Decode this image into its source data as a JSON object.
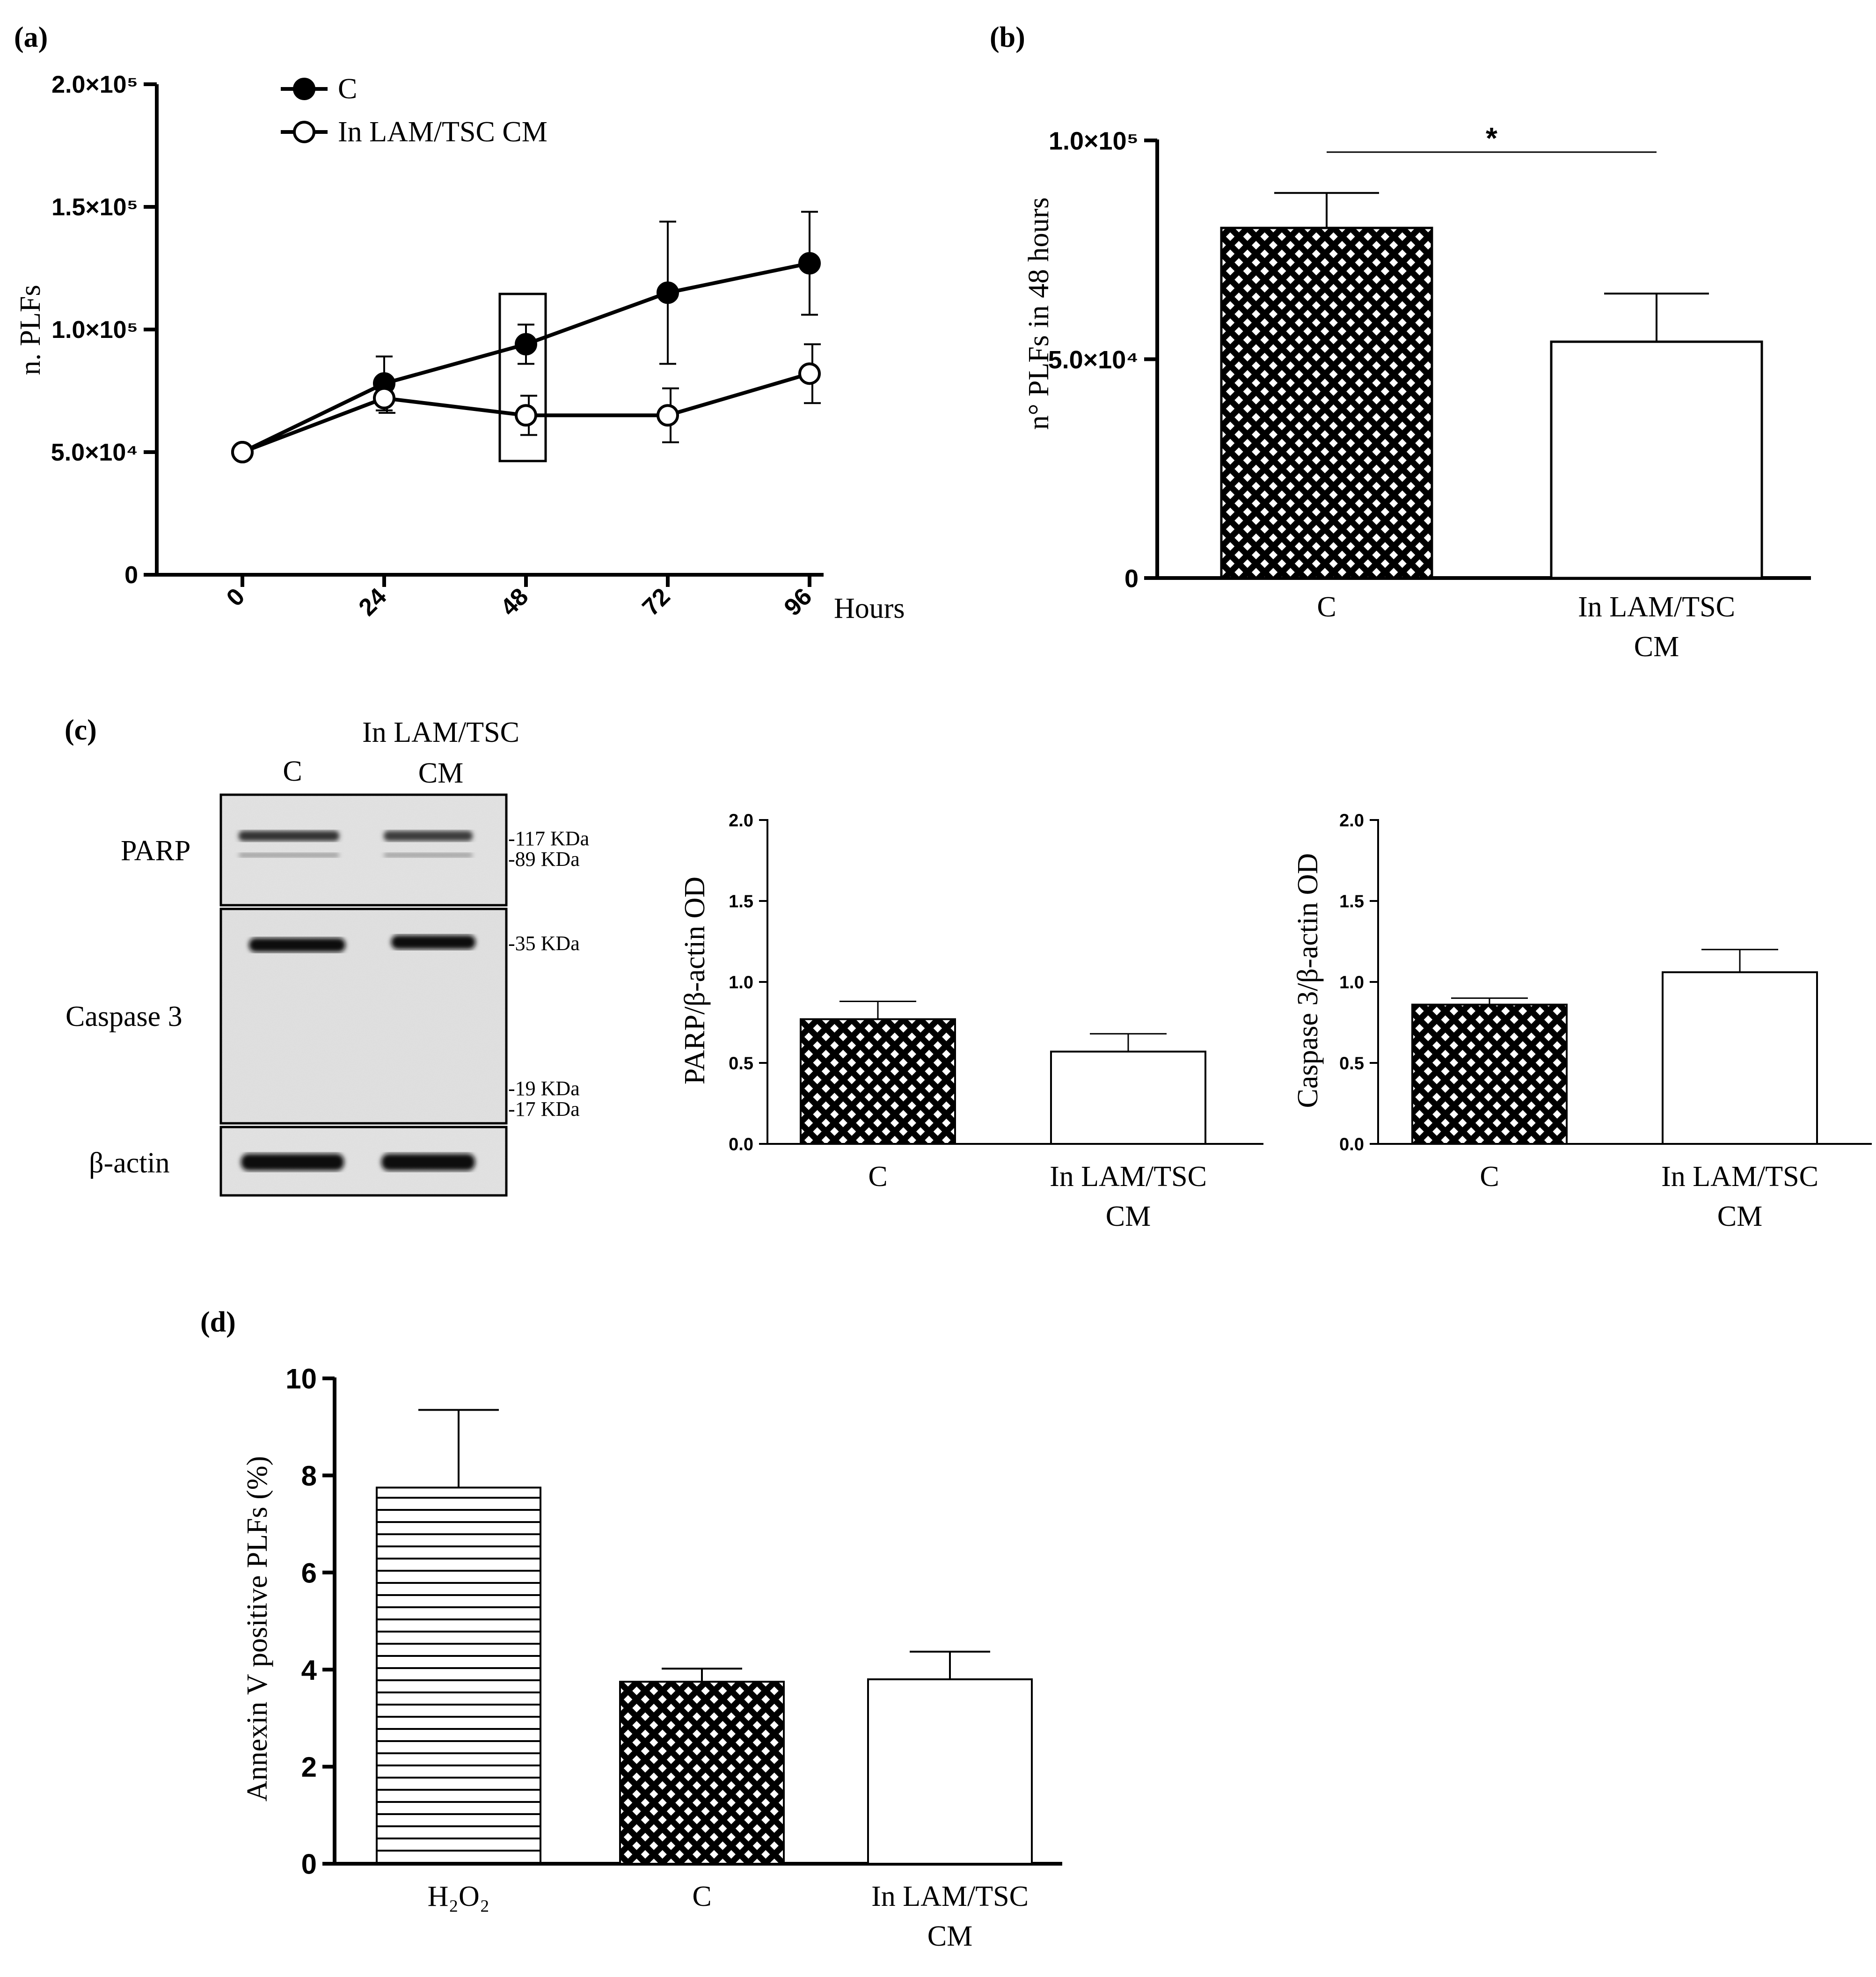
{
  "panel_labels": {
    "a": "(a)",
    "b": "(b)",
    "c": "(c)",
    "d": "(d)"
  },
  "colors": {
    "ink": "#000000",
    "background": "#ffffff",
    "blot_band": "#141414",
    "blot_bg": "#e2e2e2"
  },
  "chart_data": [
    {
      "id": "a",
      "type": "line",
      "title": "",
      "xlabel": "Hours",
      "ylabel": "n. PLFs",
      "x": [
        0,
        24,
        48,
        72,
        96
      ],
      "xtick_labels": [
        "0",
        "24",
        "48",
        "72",
        "96"
      ],
      "ylim": [
        0,
        200000
      ],
      "yticks": [
        0,
        50000,
        100000,
        150000,
        200000
      ],
      "ytick_labels": [
        "0",
        "5.0×10⁴",
        "1.0×10⁵",
        "1.5×10⁵",
        "2.0×10⁵"
      ],
      "series": [
        {
          "name": "C",
          "marker": "filled",
          "values": [
            50000,
            78000,
            94000,
            115000,
            127000
          ],
          "errors": [
            0,
            11000,
            8000,
            29000,
            21000
          ]
        },
        {
          "name": "In LAM/TSC CM",
          "marker": "open",
          "values": [
            50000,
            72000,
            65000,
            65000,
            82000
          ],
          "errors": [
            0,
            6000,
            8000,
            11000,
            12000
          ]
        }
      ],
      "highlight_box_at_x": 48
    },
    {
      "id": "b",
      "type": "bar",
      "ylabel": "n° PLFs in 48 hours",
      "categories": [
        "C",
        "In LAM/TSC CM"
      ],
      "category_lines": [
        [
          "C"
        ],
        [
          "In LAM/TSC",
          "CM"
        ]
      ],
      "values": [
        80000,
        54000
      ],
      "errors": [
        8000,
        11000
      ],
      "patterns": [
        "crosshatch",
        "none"
      ],
      "ylim": [
        0,
        100000
      ],
      "yticks": [
        0,
        50000,
        100000
      ],
      "ytick_labels": [
        "0",
        "5.0×10⁴",
        "1.0×10⁵"
      ],
      "significance": {
        "pair": [
          0,
          1
        ],
        "label": "*"
      }
    },
    {
      "id": "c-parp",
      "type": "bar",
      "ylabel": "PARP/β-actin OD",
      "categories": [
        "C",
        "In LAM/TSC CM"
      ],
      "category_lines": [
        [
          "C"
        ],
        [
          "In LAM/TSC",
          "CM"
        ]
      ],
      "values": [
        0.77,
        0.57
      ],
      "errors": [
        0.11,
        0.11
      ],
      "patterns": [
        "crosshatch",
        "none"
      ],
      "ylim": [
        0,
        2.0
      ],
      "yticks": [
        0,
        0.5,
        1.0,
        1.5,
        2.0
      ],
      "ytick_labels": [
        "0.0",
        "0.5",
        "1.0",
        "1.5",
        "2.0"
      ]
    },
    {
      "id": "c-casp",
      "type": "bar",
      "ylabel": "Caspase 3/β-actin OD",
      "categories": [
        "C",
        "In LAM/TSC CM"
      ],
      "category_lines": [
        [
          "C"
        ],
        [
          "In LAM/TSC",
          "CM"
        ]
      ],
      "values": [
        0.86,
        1.06
      ],
      "errors": [
        0.04,
        0.14
      ],
      "patterns": [
        "crosshatch",
        "none"
      ],
      "ylim": [
        0,
        2.0
      ],
      "yticks": [
        0,
        0.5,
        1.0,
        1.5,
        2.0
      ],
      "ytick_labels": [
        "0.0",
        "0.5",
        "1.0",
        "1.5",
        "2.0"
      ]
    },
    {
      "id": "d",
      "type": "bar",
      "ylabel": "Annexin V positive PLFs (%)",
      "categories": [
        "H2O2",
        "C",
        "In LAM/TSC CM"
      ],
      "category_lines": [
        [
          "H₂O₂"
        ],
        [
          "C"
        ],
        [
          "In LAM/TSC",
          "CM"
        ]
      ],
      "values": [
        7.75,
        3.75,
        3.8
      ],
      "errors": [
        1.6,
        0.27,
        0.57
      ],
      "patterns": [
        "hlines",
        "crosshatch",
        "none"
      ],
      "ylim": [
        0,
        10
      ],
      "yticks": [
        0,
        2,
        4,
        6,
        8,
        10
      ],
      "ytick_labels": [
        "0",
        "2",
        "4",
        "6",
        "8",
        "10"
      ]
    }
  ],
  "western_blot": {
    "lanes": [
      [
        "C"
      ],
      [
        "In LAM/TSC",
        "CM"
      ]
    ],
    "rows": [
      {
        "label": "PARP",
        "markers": [
          "117 KDa",
          "89 KDa"
        ]
      },
      {
        "label": "Caspase 3",
        "markers": [
          "35 KDa",
          "19 KDa",
          "17 KDa"
        ]
      },
      {
        "label": "β-actin",
        "markers": []
      }
    ]
  }
}
